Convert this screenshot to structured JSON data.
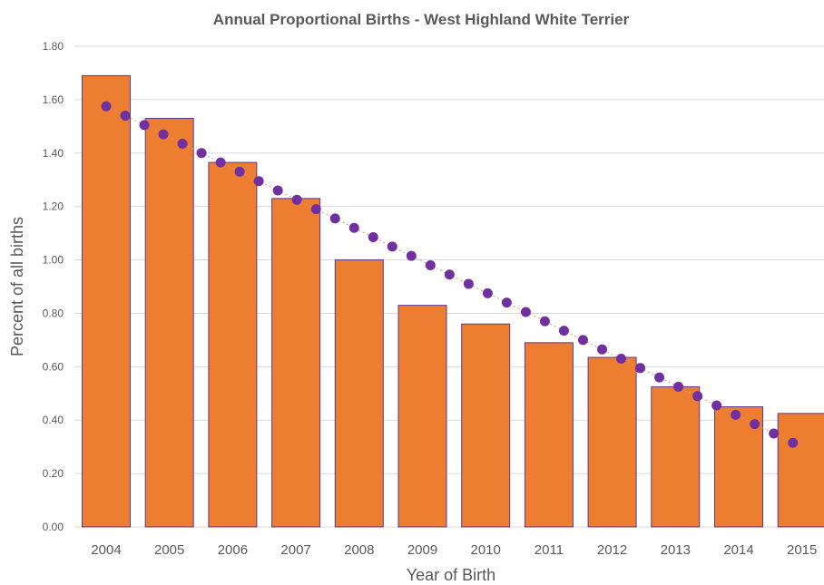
{
  "chart_data": {
    "type": "bar",
    "title": "Annual Proportional Births - West Highland White Terrier",
    "xlabel": "Year of Birth",
    "ylabel": "Percent of all births",
    "ylim": [
      0,
      1.8
    ],
    "yticks": [
      "0.00",
      "0.20",
      "0.40",
      "0.60",
      "0.80",
      "1.00",
      "1.20",
      "1.40",
      "1.60",
      "1.80"
    ],
    "categories": [
      "2004",
      "2005",
      "2006",
      "2007",
      "2008",
      "2009",
      "2010",
      "2011",
      "2012",
      "2013",
      "2014",
      "2015"
    ],
    "values": [
      1.69,
      1.53,
      1.365,
      1.23,
      1.0,
      0.83,
      0.76,
      0.69,
      0.635,
      0.525,
      0.45,
      0.425
    ],
    "trendline": {
      "type": "linear",
      "style": "dotted",
      "start": 1.575,
      "end": 0.315
    },
    "grid": true,
    "legend": "none",
    "colors": {
      "bar_fill": "#ED7D31",
      "bar_edge": "#5B3A8E",
      "trend": "#7030A0",
      "grid": "#D9D9D9",
      "text": "#595959"
    }
  }
}
